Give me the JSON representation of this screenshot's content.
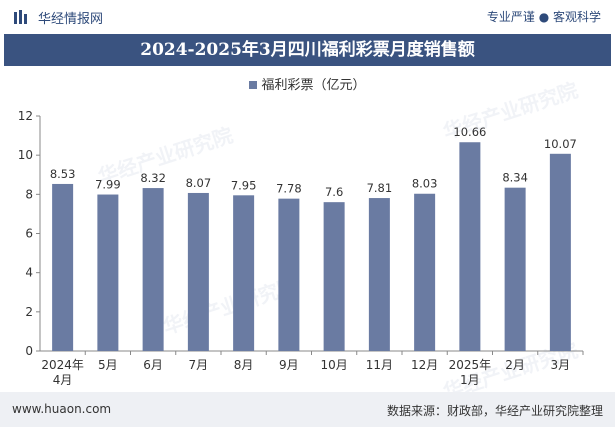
{
  "header": {
    "brand": "华经情报网",
    "tagline": "专业严谨 ● 客观科学"
  },
  "chart_data": {
    "type": "bar",
    "title": "2024-2025年3月四川福利彩票月度销售额",
    "legend_label": "福利彩票（亿元）",
    "categories": [
      "2024年\n4月",
      "5月",
      "6月",
      "7月",
      "8月",
      "9月",
      "10月",
      "11月",
      "12月",
      "2025年\n1月",
      "2月",
      "3月"
    ],
    "values": [
      8.53,
      7.99,
      8.32,
      8.07,
      7.95,
      7.78,
      7.6,
      7.81,
      8.03,
      10.66,
      8.34,
      10.07
    ],
    "value_labels": [
      "8.53",
      "7.99",
      "8.32",
      "8.07",
      "7.95",
      "7.78",
      "7.6",
      "7.81",
      "8.03",
      "10.66",
      "8.34",
      "10.07"
    ],
    "yticks": [
      "0",
      "2",
      "4",
      "6",
      "8",
      "10",
      "12"
    ],
    "ylim": [
      0,
      12
    ],
    "bar_color": "#6a7ba2",
    "grid": false,
    "legend_position": "top-center"
  },
  "watermark": "华经产业研究院",
  "footer": {
    "site": "www.huaon.com",
    "source": "数据来源：财政部，华经产业研究院整理"
  }
}
